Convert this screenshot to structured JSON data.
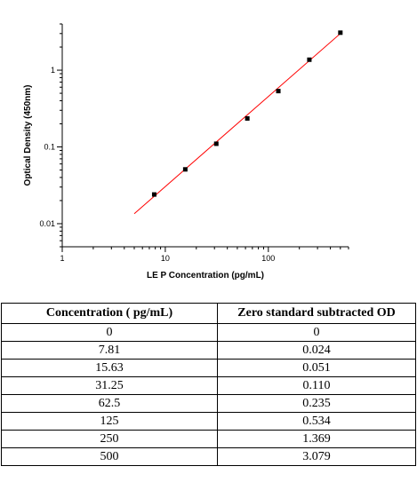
{
  "chart_data": {
    "type": "scatter",
    "xlabel": "LE P Concentration (pg/mL)",
    "ylabel": "Optical Density (450nm)",
    "xscale": "log",
    "yscale": "log",
    "xlim": [
      1,
      600
    ],
    "ylim": [
      0.005,
      4
    ],
    "x_ticks": [
      1,
      10,
      100
    ],
    "x_tick_labels": [
      "1",
      "10",
      "100"
    ],
    "y_ticks": [
      0.01,
      0.1,
      1
    ],
    "y_tick_labels": [
      "0.01",
      "0.1",
      "1"
    ],
    "grid": false,
    "legend": "none",
    "colors": {
      "points": "#000000",
      "fit_line": "#ff0000"
    },
    "points": {
      "x": [
        7.81,
        15.63,
        31.25,
        62.5,
        125,
        250,
        500
      ],
      "y": [
        0.024,
        0.051,
        0.11,
        0.235,
        0.534,
        1.369,
        3.079
      ]
    },
    "fit_line": {
      "x": [
        5,
        500
      ],
      "y": [
        0.0135,
        3.0
      ]
    }
  },
  "table": {
    "headers": [
      "Concentration ( pg/mL)",
      "Zero standard subtracted OD"
    ],
    "rows": [
      [
        "0",
        "0"
      ],
      [
        "7.81",
        "0.024"
      ],
      [
        "15.63",
        "0.051"
      ],
      [
        "31.25",
        "0.110"
      ],
      [
        "62.5",
        "0.235"
      ],
      [
        "125",
        "0.534"
      ],
      [
        "250",
        "1.369"
      ],
      [
        "500",
        "3.079"
      ]
    ]
  }
}
